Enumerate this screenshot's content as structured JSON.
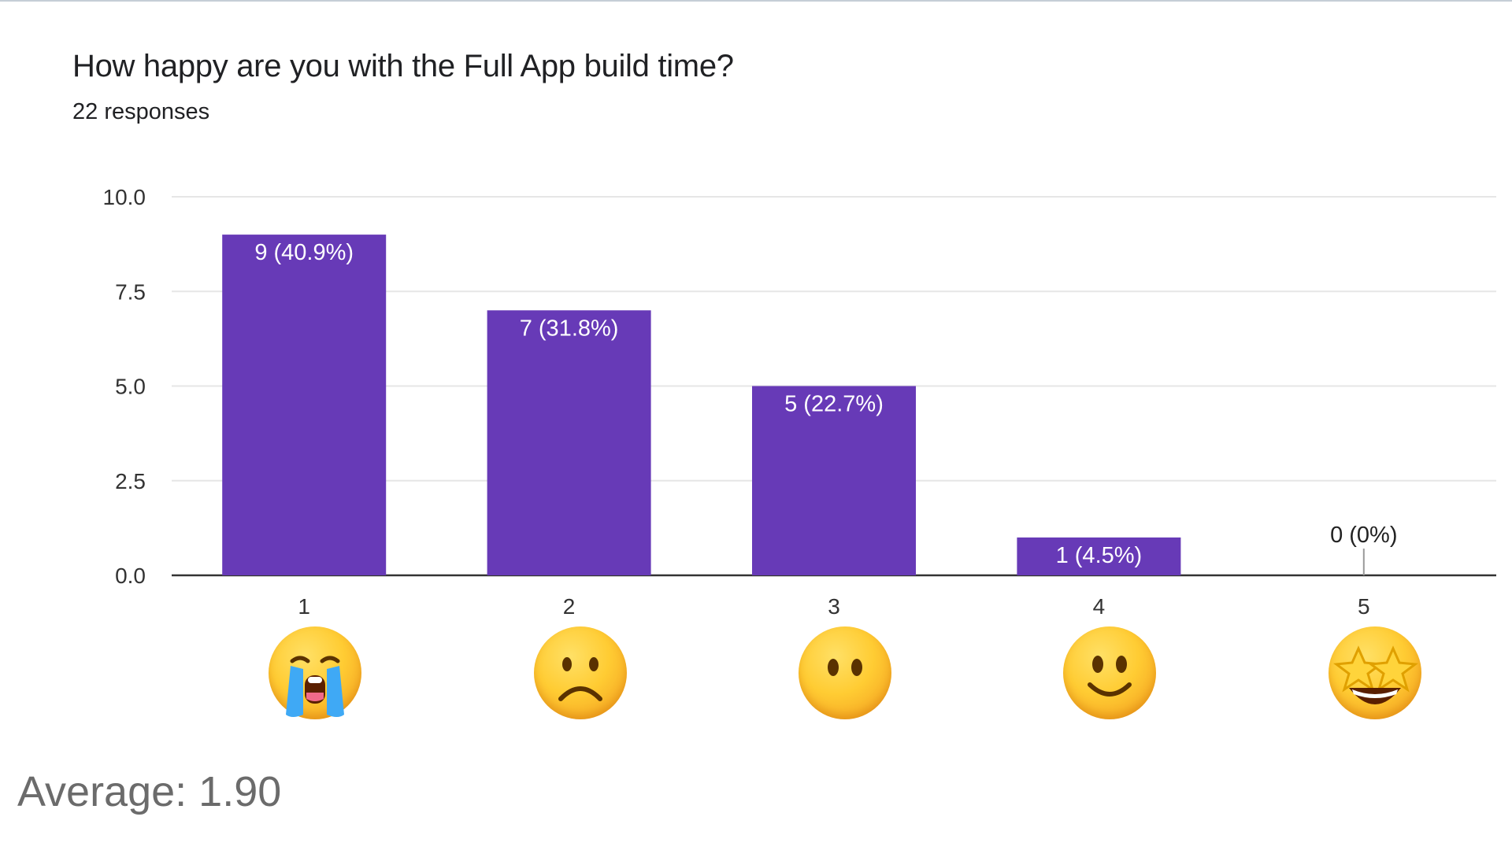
{
  "question": {
    "title": "How happy are you with the Full App build time?",
    "responses": "22 responses"
  },
  "chart_data": {
    "type": "bar",
    "categories": [
      "1",
      "2",
      "3",
      "4",
      "5"
    ],
    "values": [
      9,
      7,
      5,
      1,
      0
    ],
    "data_labels": [
      "9 (40.9%)",
      "7 (31.8%)",
      "5 (22.7%)",
      "1 (4.5%)",
      "0 (0%)"
    ],
    "ylim": [
      0,
      10
    ],
    "yticks": [
      "0.0",
      "2.5",
      "5.0",
      "7.5",
      "10.0"
    ],
    "grid": true,
    "bar_color": "#673ab7"
  },
  "emojis": [
    "loudly-crying-face-icon",
    "frowning-face-icon",
    "neutral-face-icon",
    "slightly-smiling-face-icon",
    "star-struck-face-icon"
  ],
  "summary": {
    "average": "Average: 1.90"
  }
}
